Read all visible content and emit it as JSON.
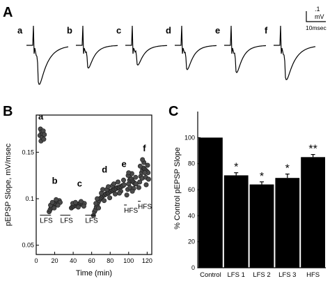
{
  "panels": {
    "A": {
      "letter": "A"
    },
    "B": {
      "letter": "B"
    },
    "C": {
      "letter": "C"
    }
  },
  "scale_bar": {
    "amplitude": ".1",
    "amplitude_unit": "mV",
    "time": "10msec"
  },
  "chart_data": [
    {
      "panel": "A",
      "type": "line",
      "traces": [
        {
          "label": "a",
          "peak_mv": 0.25,
          "decay": "slow"
        },
        {
          "label": "b",
          "peak_mv": 0.15,
          "decay": "medium"
        },
        {
          "label": "c",
          "peak_mv": 0.13,
          "decay": "medium"
        },
        {
          "label": "d",
          "peak_mv": 0.16,
          "decay": "medium"
        },
        {
          "label": "e",
          "peak_mv": 0.18,
          "decay": "medium"
        },
        {
          "label": "f",
          "peak_mv": 0.22,
          "decay": "slow"
        }
      ]
    },
    {
      "panel": "B",
      "type": "scatter",
      "xlabel": "Time (min)",
      "ylabel": "pEPSP Slope, mV/msec",
      "xlim": [
        0,
        125
      ],
      "ylim": [
        0.04,
        0.19
      ],
      "xticks": [
        "0",
        "20",
        "40",
        "60",
        "80",
        "100",
        "120"
      ],
      "yticks": [
        "0.05",
        "0.1",
        "0.15"
      ],
      "letters": [
        {
          "label": "a",
          "x": 5,
          "y": 0.185
        },
        {
          "label": "b",
          "x": 20,
          "y": 0.116
        },
        {
          "label": "c",
          "x": 47,
          "y": 0.113
        },
        {
          "label": "d",
          "x": 74,
          "y": 0.128
        },
        {
          "label": "e",
          "x": 95,
          "y": 0.134
        },
        {
          "label": "f",
          "x": 117,
          "y": 0.151
        }
      ],
      "stim_labels": [
        {
          "label": "LFS",
          "x_start": 4,
          "x_end": 16,
          "y": 0.074
        },
        {
          "label": "LFS",
          "x_start": 26,
          "x_end": 37,
          "y": 0.074
        },
        {
          "label": "LFS",
          "x_start": 53,
          "x_end": 64,
          "y": 0.074
        },
        {
          "label": "HFS",
          "x": 98,
          "y": 0.085
        },
        {
          "label": "HFS",
          "x": 113,
          "y": 0.089
        }
      ],
      "series": [
        {
          "segment": "baseline",
          "points": [
            [
              4,
              0.168
            ],
            [
              4.6,
              0.175
            ],
            [
              5.2,
              0.162
            ],
            [
              5.8,
              0.172
            ],
            [
              6.4,
              0.166
            ],
            [
              7,
              0.17
            ],
            [
              7.6,
              0.173
            ],
            [
              8.2,
              0.164
            ],
            [
              8.8,
              0.169
            ]
          ]
        },
        {
          "segment": "post-LFS1",
          "points": [
            [
              14,
              0.086
            ],
            [
              15,
              0.088
            ],
            [
              16,
              0.09
            ],
            [
              17,
              0.091
            ],
            [
              18,
              0.093
            ],
            [
              19,
              0.094
            ],
            [
              20,
              0.095
            ],
            [
              21,
              0.095
            ],
            [
              22,
              0.096
            ],
            [
              23,
              0.097
            ],
            [
              24,
              0.097
            ],
            [
              25,
              0.098
            ],
            [
              26,
              0.096
            ],
            [
              15.5,
              0.093
            ],
            [
              17.5,
              0.096
            ],
            [
              19.5,
              0.09
            ],
            [
              21.5,
              0.099
            ],
            [
              23.5,
              0.093
            ]
          ]
        },
        {
          "segment": "post-LFS2",
          "points": [
            [
              38,
              0.09
            ],
            [
              39,
              0.091
            ],
            [
              40,
              0.092
            ],
            [
              41,
              0.092
            ],
            [
              42,
              0.093
            ],
            [
              43,
              0.093
            ],
            [
              44,
              0.094
            ],
            [
              45,
              0.094
            ],
            [
              46,
              0.094
            ],
            [
              47,
              0.095
            ],
            [
              48,
              0.095
            ],
            [
              49,
              0.094
            ],
            [
              50,
              0.094
            ],
            [
              51,
              0.095
            ],
            [
              52,
              0.095
            ],
            [
              39.5,
              0.095
            ],
            [
              42.5,
              0.096
            ],
            [
              45.5,
              0.091
            ],
            [
              48.5,
              0.097
            ],
            [
              51.5,
              0.092
            ]
          ]
        },
        {
          "segment": "post-LFS3",
          "points": [
            [
              62,
              0.082
            ],
            [
              63,
              0.086
            ],
            [
              64,
              0.088
            ],
            [
              65,
              0.091
            ],
            [
              66,
              0.093
            ],
            [
              67,
              0.096
            ],
            [
              68,
              0.098
            ],
            [
              69,
              0.1
            ],
            [
              70,
              0.101
            ],
            [
              71,
              0.102
            ],
            [
              72,
              0.103
            ],
            [
              73,
              0.104
            ],
            [
              74,
              0.104
            ],
            [
              75,
              0.105
            ],
            [
              76,
              0.105
            ],
            [
              77,
              0.106
            ],
            [
              78,
              0.106
            ],
            [
              79,
              0.107
            ],
            [
              80,
              0.108
            ],
            [
              81,
              0.108
            ],
            [
              82,
              0.109
            ],
            [
              83,
              0.109
            ],
            [
              84,
              0.11
            ],
            [
              85,
              0.11
            ],
            [
              86,
              0.111
            ],
            [
              87,
              0.111
            ],
            [
              88,
              0.112
            ],
            [
              89,
              0.112
            ],
            [
              90,
              0.112
            ],
            [
              91,
              0.113
            ],
            [
              92,
              0.113
            ],
            [
              93,
              0.114
            ],
            [
              94,
              0.114
            ],
            [
              95,
              0.115
            ],
            [
              64.5,
              0.095
            ],
            [
              67.5,
              0.09
            ],
            [
              70.5,
              0.106
            ],
            [
              73.5,
              0.098
            ],
            [
              76.5,
              0.11
            ],
            [
              79.5,
              0.101
            ],
            [
              82.5,
              0.114
            ],
            [
              85.5,
              0.105
            ],
            [
              88.5,
              0.118
            ],
            [
              91.5,
              0.108
            ],
            [
              94.5,
              0.12
            ],
            [
              66,
              0.1
            ],
            [
              72,
              0.11
            ],
            [
              78,
              0.113
            ],
            [
              84,
              0.116
            ],
            [
              90,
              0.106
            ]
          ]
        },
        {
          "segment": "post-HFS1",
          "points": [
            [
              98,
              0.104
            ],
            [
              99,
              0.11
            ],
            [
              100,
              0.116
            ],
            [
              101,
              0.12
            ],
            [
              102,
              0.122
            ],
            [
              103,
              0.121
            ],
            [
              104,
              0.119
            ],
            [
              105,
              0.118
            ],
            [
              106,
              0.117
            ],
            [
              107,
              0.116
            ],
            [
              108,
              0.116
            ],
            [
              99.5,
              0.125
            ],
            [
              101.5,
              0.112
            ],
            [
              103.5,
              0.127
            ],
            [
              105.5,
              0.111
            ],
            [
              107.5,
              0.123
            ],
            [
              100,
              0.128
            ],
            [
              104,
              0.108
            ]
          ]
        },
        {
          "segment": "post-HFS2",
          "points": [
            [
              111,
              0.112
            ],
            [
              112,
              0.118
            ],
            [
              113,
              0.124
            ],
            [
              114,
              0.128
            ],
            [
              115,
              0.131
            ],
            [
              116,
              0.133
            ],
            [
              117,
              0.132
            ],
            [
              118,
              0.131
            ],
            [
              119,
              0.13
            ],
            [
              120,
              0.129
            ],
            [
              121,
              0.128
            ],
            [
              112.5,
              0.135
            ],
            [
              114.5,
              0.122
            ],
            [
              116.5,
              0.139
            ],
            [
              118.5,
              0.123
            ],
            [
              120.5,
              0.136
            ],
            [
              115,
              0.142
            ],
            [
              119,
              0.115
            ],
            [
              117.5,
              0.128
            ],
            [
              121.5,
              0.121
            ]
          ]
        }
      ]
    },
    {
      "panel": "C",
      "type": "bar",
      "categories": [
        "Control",
        "LFS 1",
        "LFS 2",
        "LFS 3",
        "HFS"
      ],
      "values": [
        100,
        71,
        64,
        69,
        85
      ],
      "errors": [
        0,
        2,
        2,
        3,
        2
      ],
      "significance": [
        "",
        "*",
        "*",
        "*",
        "**"
      ],
      "ylabel": "% Control pEPSP Slope",
      "ylim": [
        0,
        120
      ],
      "yticks": [
        "0",
        "20",
        "40",
        "60",
        "80",
        "100"
      ]
    }
  ]
}
